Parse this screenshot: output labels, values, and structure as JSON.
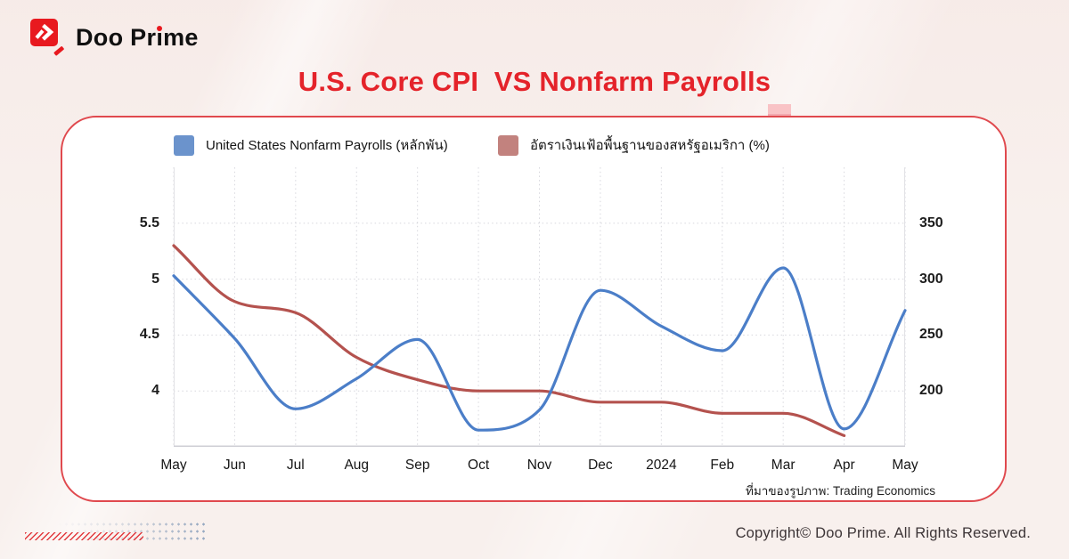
{
  "logo": {
    "parts": [
      "Doo Pr",
      "i",
      "me"
    ]
  },
  "title": "U.S. Core CPI  VS Nonfarm Payrolls",
  "legend": [
    {
      "key": "nonfarm-payrolls",
      "label": "United States Nonfarm Payrolls (หลักพัน)",
      "color": "#6b93cc"
    },
    {
      "key": "core-cpi",
      "label": "อัตราเงินเฟ้อพื้นฐานของสหรัฐอเมริกา (%)",
      "color": "#c2827e"
    }
  ],
  "chart_data": {
    "type": "line",
    "title": "U.S. Core CPI VS Nonfarm Payrolls",
    "x_labels": [
      "May",
      "Jun",
      "Jul",
      "Aug",
      "Sep",
      "Oct",
      "Nov",
      "Dec",
      "2024",
      "Feb",
      "Mar",
      "Apr",
      "May"
    ],
    "series": [
      {
        "key": "core-cpi",
        "name": "อัตราเงินเฟ้อพื้นฐานของสหรัฐอเมริกา (%)",
        "axis": "left",
        "color": "#b4524e",
        "values": [
          5.3,
          4.8,
          4.7,
          4.3,
          4.1,
          4.0,
          4.0,
          3.9,
          3.9,
          3.8,
          3.8,
          3.6
        ]
      },
      {
        "key": "nonfarm-payrolls",
        "name": "United States Nonfarm Payrolls (หลักพัน)",
        "axis": "right",
        "color": "#4b7ec8",
        "values": [
          303,
          247,
          184,
          211,
          246,
          165,
          183,
          290,
          258,
          236,
          310,
          166,
          272
        ]
      }
    ],
    "left_axis": {
      "ticks": [
        5.5,
        5,
        4.5,
        4
      ],
      "range": [
        3.5,
        6.0
      ]
    },
    "right_axis": {
      "ticks": [
        350,
        300,
        250,
        200
      ],
      "range": [
        150,
        400
      ]
    },
    "grid": true,
    "legend_position": "top"
  },
  "source_note": "ที่มาของรูปภาพ: Trading Economics",
  "footer": {
    "copyright": "Copyright© Doo Prime. All Rights Reserved."
  }
}
